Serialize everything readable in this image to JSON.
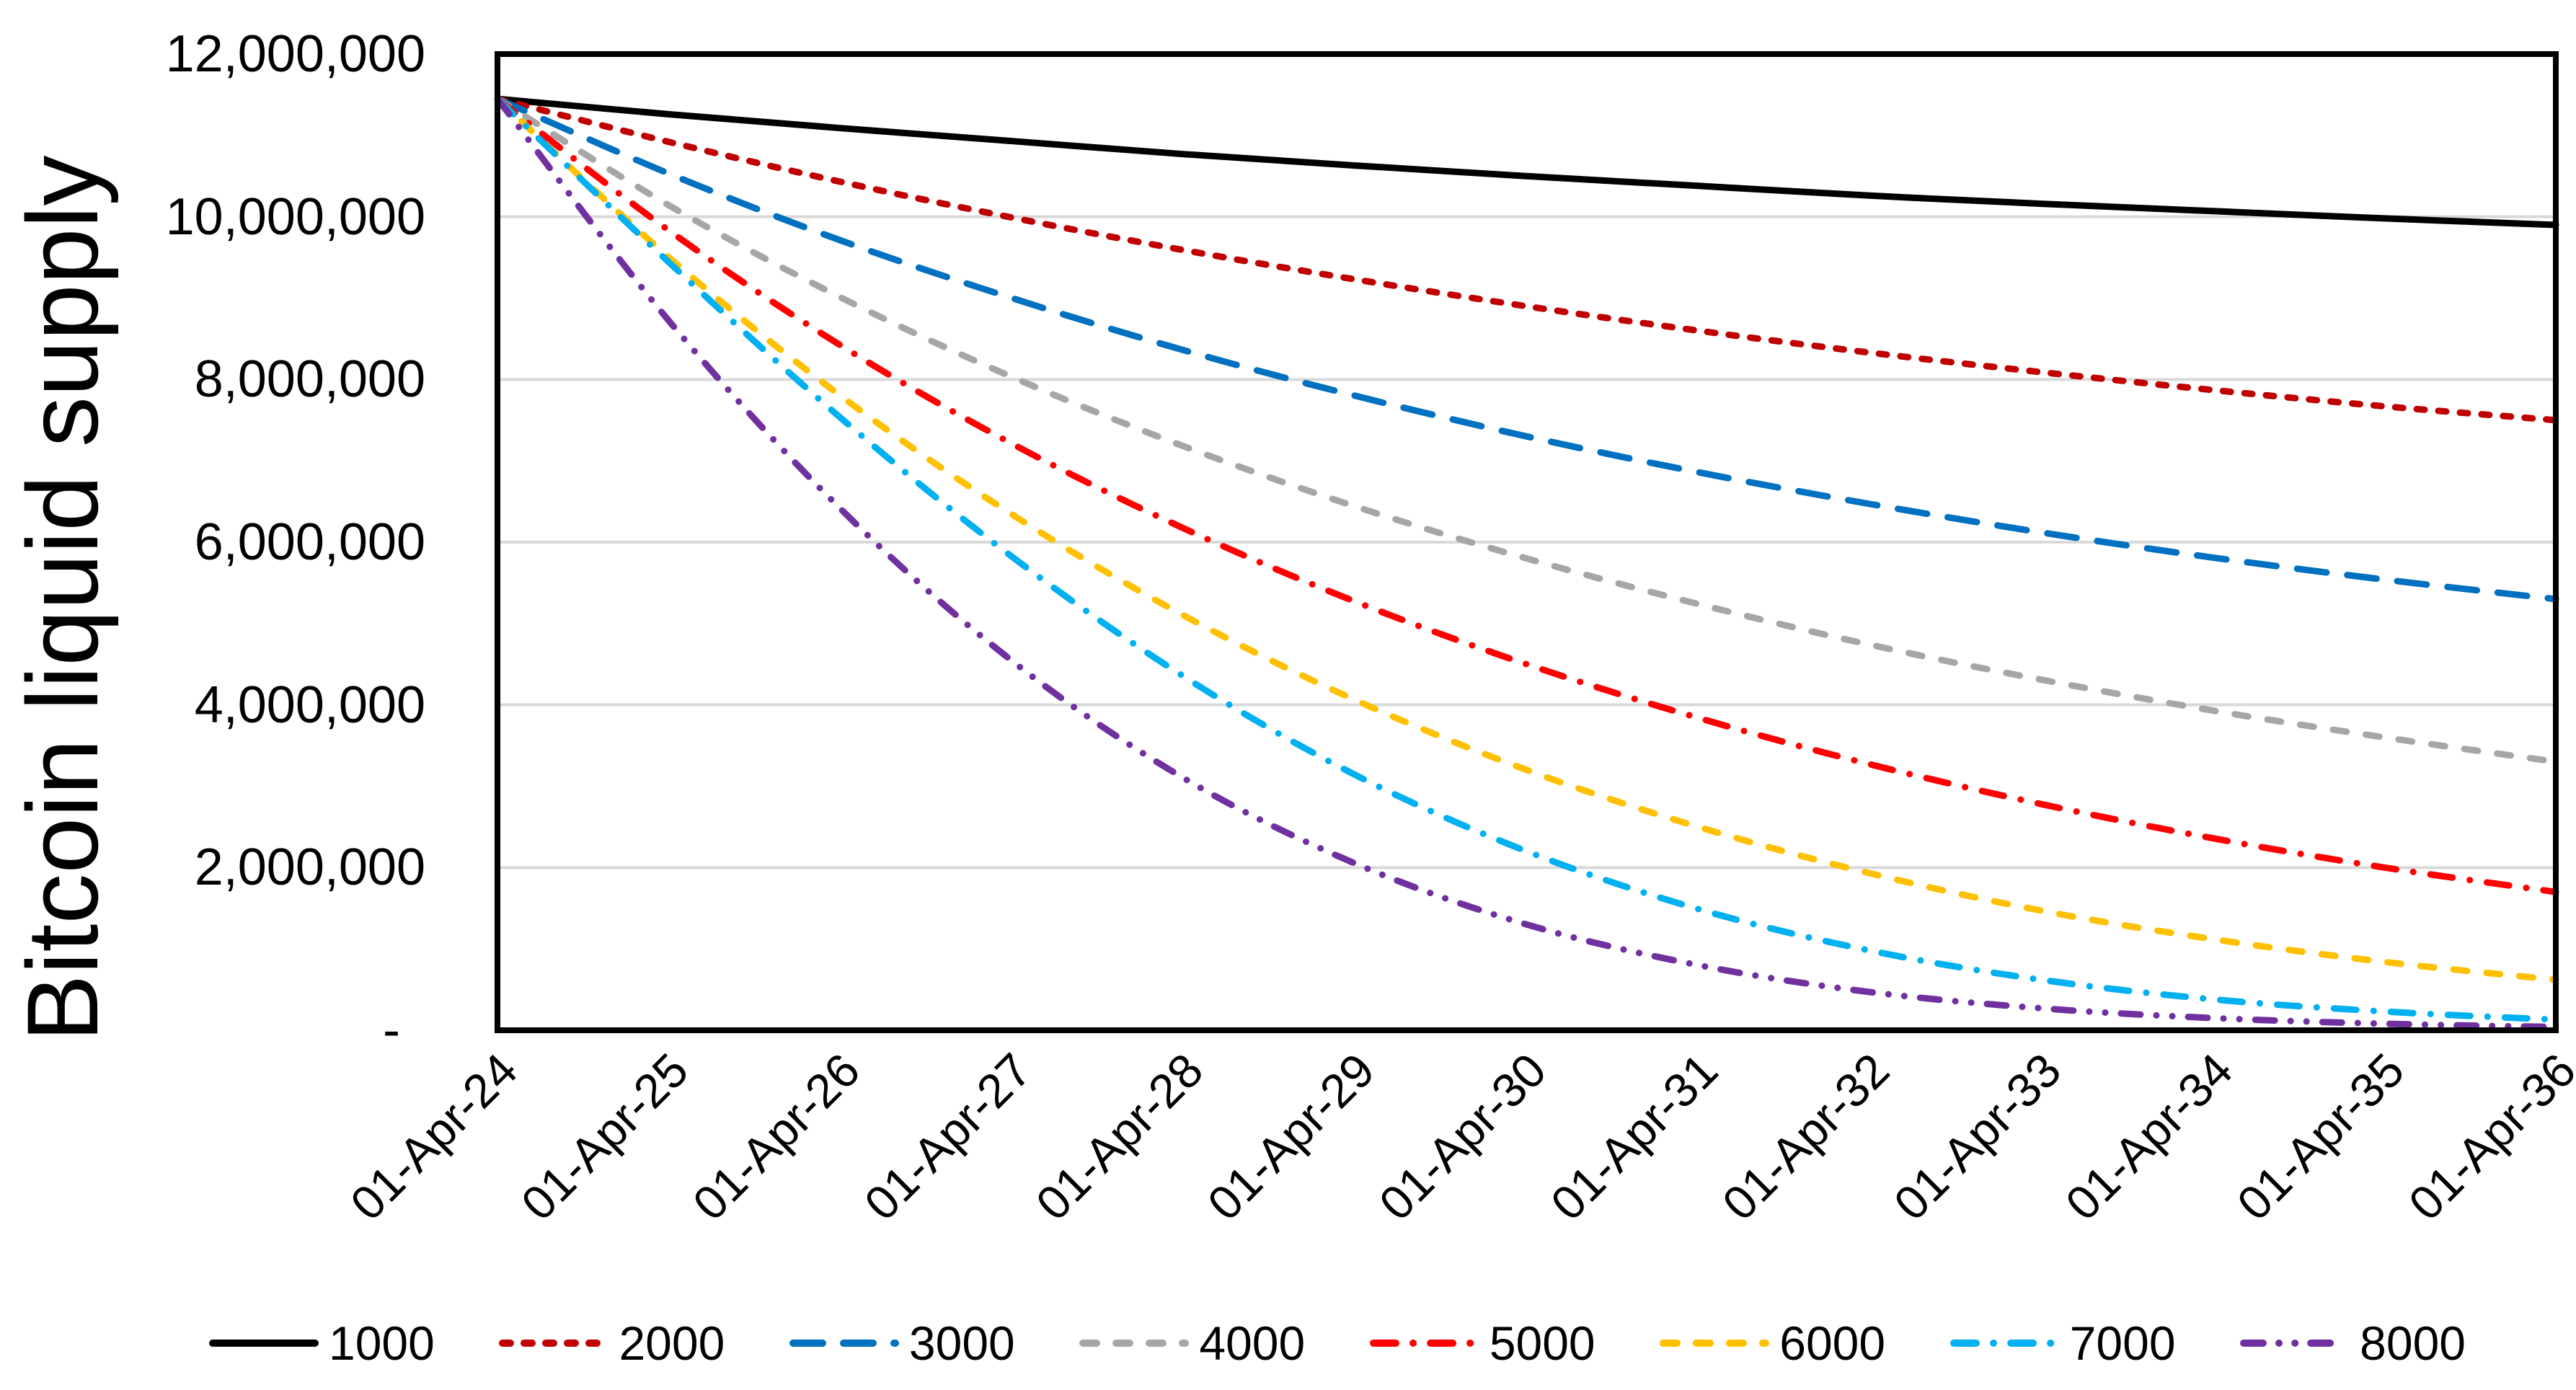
{
  "chart_data": {
    "type": "line",
    "title": "",
    "xlabel": "",
    "ylabel": "Bitcoin liquid supply",
    "ylim": [
      0,
      12000000
    ],
    "grid": "horizontal",
    "gridline_color": "#d9d9d9",
    "axis_frame_color": "#000000",
    "legend_position": "bottom",
    "x_tick_labels": [
      "01-Apr-24",
      "01-Apr-25",
      "01-Apr-26",
      "01-Apr-27",
      "01-Apr-28",
      "01-Apr-29",
      "01-Apr-30",
      "01-Apr-31",
      "01-Apr-32",
      "01-Apr-33",
      "01-Apr-34",
      "01-Apr-35",
      "01-Apr-36"
    ],
    "y_ticks": [
      {
        "value": 12000000,
        "label": "12,000,000"
      },
      {
        "value": 10000000,
        "label": "10,000,000"
      },
      {
        "value": 8000000,
        "label": "8,000,000"
      },
      {
        "value": 6000000,
        "label": "6,000,000"
      },
      {
        "value": 4000000,
        "label": "4,000,000"
      },
      {
        "value": 2000000,
        "label": "2,000,000"
      },
      {
        "value": 0,
        "label": "-"
      }
    ],
    "series": [
      {
        "name": "1000",
        "color": "#000000",
        "style": "solid",
        "values": [
          11450000,
          11260000,
          11090000,
          10930000,
          10770000,
          10630000,
          10500000,
          10380000,
          10260000,
          10160000,
          10070000,
          9980000,
          9900000
        ]
      },
      {
        "name": "2000",
        "color": "#c00000",
        "style": "dot",
        "values": [
          11450000,
          10920000,
          10430000,
          9990000,
          9590000,
          9230000,
          8900000,
          8600000,
          8330000,
          8090000,
          7870000,
          7670000,
          7500000
        ]
      },
      {
        "name": "3000",
        "color": "#0070c0",
        "style": "long-dash",
        "values": [
          11450000,
          10530000,
          9710000,
          9000000,
          8360000,
          7800000,
          7300000,
          6860000,
          6470000,
          6120000,
          5810000,
          5540000,
          5300000
        ]
      },
      {
        "name": "4000",
        "color": "#a6a6a6",
        "style": "dash",
        "values": [
          11450000,
          10140000,
          9010000,
          8030000,
          7180000,
          6440000,
          5800000,
          5240000,
          4740000,
          4310000,
          3930000,
          3600000,
          3300000
        ]
      },
      {
        "name": "5000",
        "color": "#ff0000",
        "style": "dash-dot",
        "values": [
          11450000,
          9830000,
          8420000,
          7210000,
          6170000,
          5270000,
          4500000,
          3840000,
          3270000,
          2780000,
          2360000,
          2000000,
          1700000
        ]
      },
      {
        "name": "6000",
        "color": "#ffc000",
        "style": "dash",
        "values": [
          11450000,
          9500000,
          7800000,
          6340000,
          5100000,
          4060000,
          3200000,
          2500000,
          1930000,
          1470000,
          1120000,
          840000,
          620000
        ]
      },
      {
        "name": "7000",
        "color": "#00b0f0",
        "style": "dash-dot",
        "values": [
          11450000,
          9440000,
          7530000,
          5820000,
          4350000,
          3140000,
          2200000,
          1490000,
          980000,
          620000,
          380000,
          230000,
          130000
        ]
      },
      {
        "name": "8000",
        "color": "#7030a0",
        "style": "dash-dot-dot",
        "values": [
          11450000,
          8720000,
          6410000,
          4540000,
          3100000,
          2050000,
          1300000,
          800000,
          470000,
          270000,
          150000,
          80000,
          40000
        ]
      }
    ]
  }
}
